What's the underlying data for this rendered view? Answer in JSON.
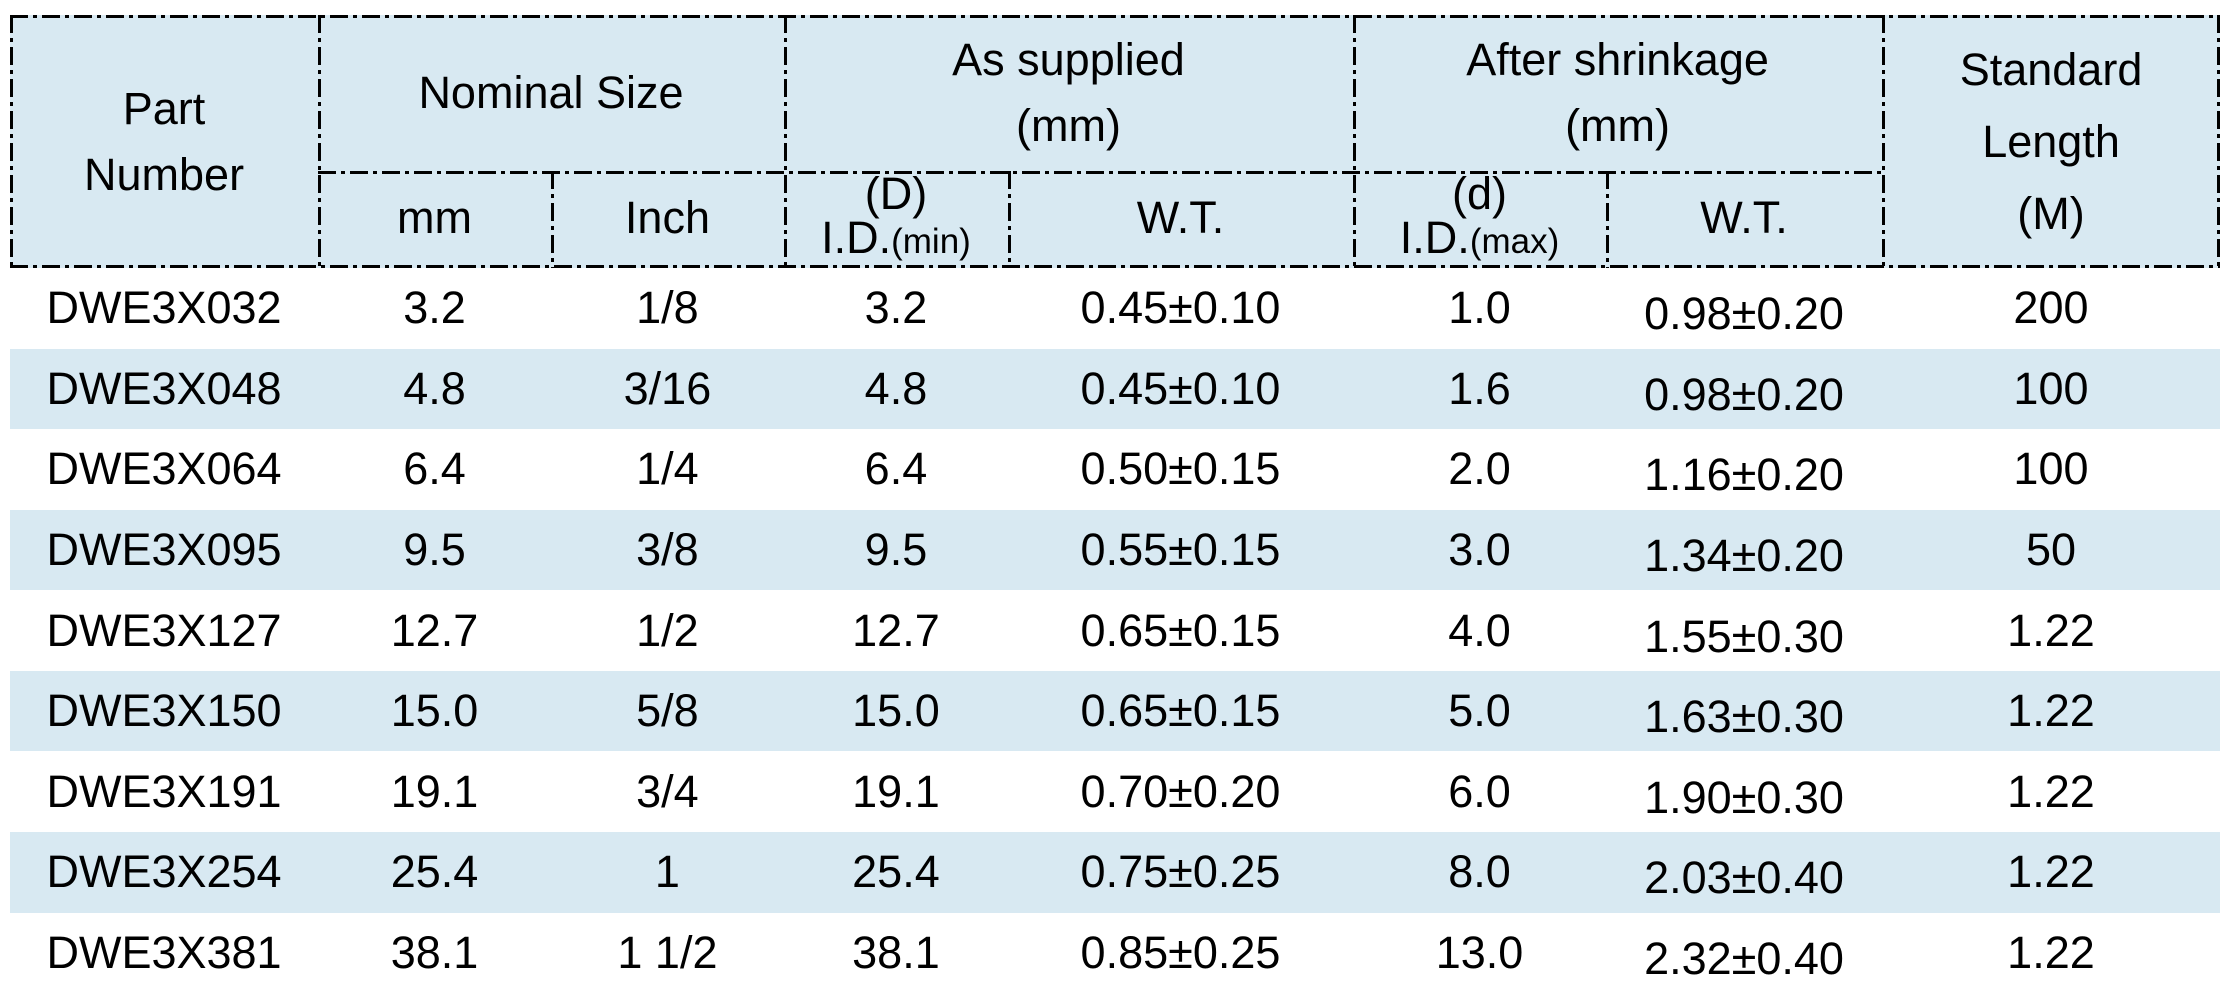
{
  "header": {
    "part_number": "Part\nNumber",
    "nominal_size": "Nominal Size",
    "as_supplied": "As supplied\n(mm)",
    "after_shrinkage": "After shrinkage\n(mm)",
    "standard_length": "Standard\nLength\n(M)",
    "sub": {
      "mm": "mm",
      "inch": "Inch",
      "id_min_top": "(D)",
      "id_min_main": "I.D.",
      "id_min_small": "(min)",
      "wt_supplied": "W.T.",
      "id_max_top": "(d)",
      "id_max_main": "I.D.",
      "id_max_small": "(max)",
      "wt_shrinkage": "W.T."
    }
  },
  "rows": [
    {
      "part": "DWE3X032",
      "mm": "3.2",
      "inch": "1/8",
      "id_min": "3.2",
      "wt_supplied": "0.45±0.10",
      "id_max": "1.0",
      "wt_shrink": "0.98±0.20",
      "length": "200"
    },
    {
      "part": "DWE3X048",
      "mm": "4.8",
      "inch": "3/16",
      "id_min": "4.8",
      "wt_supplied": "0.45±0.10",
      "id_max": "1.6",
      "wt_shrink": "0.98±0.20",
      "length": "100"
    },
    {
      "part": "DWE3X064",
      "mm": "6.4",
      "inch": "1/4",
      "id_min": "6.4",
      "wt_supplied": "0.50±0.15",
      "id_max": "2.0",
      "wt_shrink": "1.16±0.20",
      "length": "100"
    },
    {
      "part": "DWE3X095",
      "mm": "9.5",
      "inch": "3/8",
      "id_min": "9.5",
      "wt_supplied": "0.55±0.15",
      "id_max": "3.0",
      "wt_shrink": "1.34±0.20",
      "length": "50"
    },
    {
      "part": "DWE3X127",
      "mm": "12.7",
      "inch": "1/2",
      "id_min": "12.7",
      "wt_supplied": "0.65±0.15",
      "id_max": "4.0",
      "wt_shrink": "1.55±0.30",
      "length": "1.22"
    },
    {
      "part": "DWE3X150",
      "mm": "15.0",
      "inch": "5/8",
      "id_min": "15.0",
      "wt_supplied": "0.65±0.15",
      "id_max": "5.0",
      "wt_shrink": "1.63±0.30",
      "length": "1.22"
    },
    {
      "part": "DWE3X191",
      "mm": "19.1",
      "inch": "3/4",
      "id_min": "19.1",
      "wt_supplied": "0.70±0.20",
      "id_max": "6.0",
      "wt_shrink": "1.90±0.30",
      "length": "1.22"
    },
    {
      "part": "DWE3X254",
      "mm": "25.4",
      "inch": "1",
      "id_min": "25.4",
      "wt_supplied": "0.75±0.25",
      "id_max": "8.0",
      "wt_shrink": "2.03±0.40",
      "length": "1.22"
    },
    {
      "part": "DWE3X381",
      "mm": "38.1",
      "inch": "1 1/2",
      "id_min": "38.1",
      "wt_supplied": "0.85±0.25",
      "id_max": "13.0",
      "wt_shrink": "2.32±0.40",
      "length": "1.22"
    }
  ],
  "colors": {
    "header_bg": "#d8e9f2",
    "stripe_bg": "#d8e9f2",
    "border": "#000000",
    "text": "#000000"
  }
}
